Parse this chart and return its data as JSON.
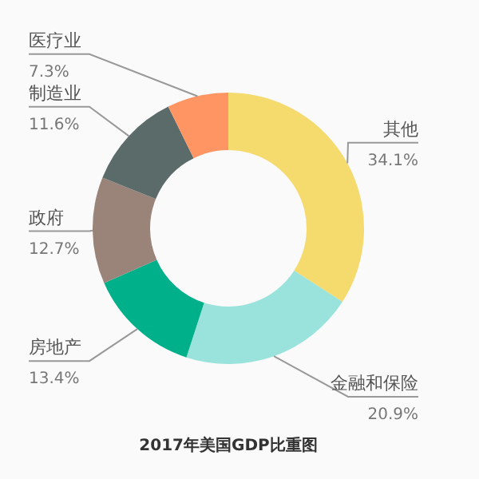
{
  "chart_data": {
    "type": "donut",
    "title": "2017年美国GDP比重图",
    "categories": [
      "其他",
      "金融和保险",
      "房地产",
      "政府",
      "制造业",
      "医疗业"
    ],
    "values": [
      34.1,
      20.9,
      13.4,
      12.7,
      11.6,
      7.3
    ],
    "value_labels": [
      "34.1%",
      "20.9%",
      "13.4%",
      "12.7%",
      "11.6%",
      "7.3%"
    ],
    "colors": [
      "#f5da6e",
      "#9ae3dc",
      "#00b08a",
      "#9a8479",
      "#5a6b69",
      "#ff9563"
    ],
    "legend": false
  }
}
